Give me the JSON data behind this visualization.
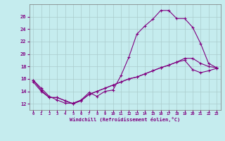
{
  "xlabel": "Windchill (Refroidissement éolien,°C)",
  "xlim": [
    -0.5,
    23.5
  ],
  "ylim": [
    11.0,
    28.0
  ],
  "xticks": [
    0,
    1,
    2,
    3,
    4,
    5,
    6,
    7,
    8,
    9,
    10,
    11,
    12,
    13,
    14,
    15,
    16,
    17,
    18,
    19,
    20,
    21,
    22,
    23
  ],
  "yticks": [
    12,
    14,
    16,
    18,
    20,
    22,
    24,
    26
  ],
  "bg_color": "#c5ecee",
  "line_color": "#800080",
  "grid_color": "#aacccc",
  "line1_x": [
    0,
    1,
    2,
    3,
    4,
    5,
    6,
    7,
    8,
    9,
    10,
    11,
    12,
    13,
    14,
    15,
    16,
    17,
    18,
    19,
    20,
    21,
    22,
    23
  ],
  "line1_y": [
    15.8,
    14.5,
    13.2,
    12.6,
    12.1,
    12.1,
    12.6,
    13.8,
    13.2,
    14.0,
    14.2,
    16.5,
    19.5,
    23.2,
    24.5,
    25.6,
    27.0,
    27.0,
    25.7,
    25.7,
    24.3,
    21.7,
    18.5,
    17.8
  ],
  "line2_x": [
    0,
    1,
    2,
    3,
    4,
    5,
    6,
    7,
    8,
    9,
    10,
    11,
    12,
    13,
    14,
    15,
    16,
    17,
    18,
    19,
    20,
    21,
    22,
    23
  ],
  "line2_y": [
    15.8,
    14.2,
    13.0,
    13.0,
    12.5,
    12.0,
    12.5,
    13.5,
    14.0,
    14.5,
    15.0,
    15.5,
    16.0,
    16.3,
    16.8,
    17.3,
    17.8,
    18.2,
    18.7,
    19.3,
    19.3,
    18.5,
    18.0,
    17.8
  ],
  "line3_x": [
    0,
    1,
    2,
    3,
    4,
    5,
    6,
    7,
    8,
    9,
    10,
    11,
    12,
    13,
    14,
    15,
    16,
    17,
    18,
    19,
    20,
    21,
    22,
    23
  ],
  "line3_y": [
    15.5,
    14.0,
    13.0,
    13.0,
    12.5,
    12.0,
    12.5,
    13.5,
    14.0,
    14.5,
    15.0,
    15.5,
    16.0,
    16.3,
    16.8,
    17.3,
    17.8,
    18.2,
    18.7,
    19.0,
    17.5,
    17.0,
    17.3,
    17.7
  ]
}
